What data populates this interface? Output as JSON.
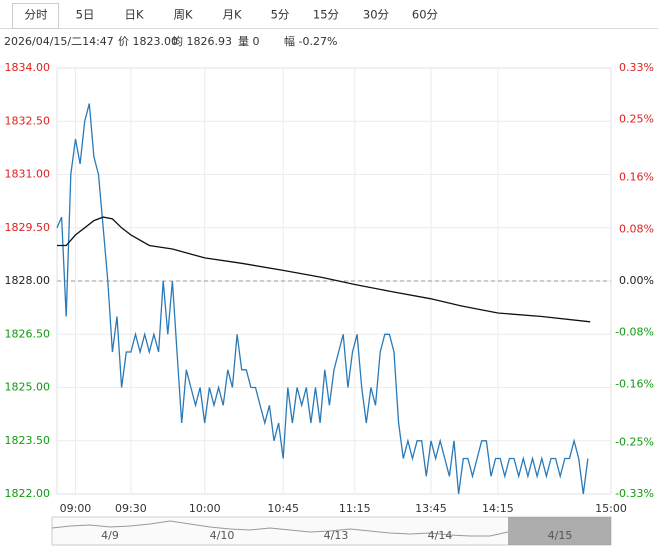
{
  "tabs": [
    "分时",
    "5日",
    "日K",
    "周K",
    "月K",
    "5分",
    "15分",
    "30分",
    "60分"
  ],
  "info": [
    "2026/04/15/二14:47",
    "价 1823.00",
    "均 1826.93",
    "量 0",
    "幅 -0.27%"
  ],
  "navigator": {
    "labels": [
      "4/9",
      "4/10",
      "4/13",
      "4/14",
      "4/15"
    ]
  },
  "chart_data": {
    "type": "line",
    "xlim": [
      0,
      240
    ],
    "xticks": [
      {
        "value": 8,
        "label": "09:00"
      },
      {
        "value": 32,
        "label": "09:30"
      },
      {
        "value": 64,
        "label": "10:00"
      },
      {
        "value": 98,
        "label": "10:45"
      },
      {
        "value": 129,
        "label": "11:15"
      },
      {
        "value": 162,
        "label": "13:45"
      },
      {
        "value": 191,
        "label": "14:15"
      },
      {
        "value": 240,
        "label": "15:00"
      }
    ],
    "ylim": [
      1822,
      1834
    ],
    "yticks": [
      {
        "value": 1834,
        "label": "1834.00"
      },
      {
        "value": 1832.5,
        "label": "1832.50"
      },
      {
        "value": 1831,
        "label": "1831.00"
      },
      {
        "value": 1829.5,
        "label": "1829.50"
      },
      {
        "value": 1828,
        "label": "1828.00"
      },
      {
        "value": 1826.5,
        "label": "1826.50"
      },
      {
        "value": 1825,
        "label": "1825.00"
      },
      {
        "value": 1823.5,
        "label": "1823.50"
      },
      {
        "value": 1822,
        "label": "1822.00"
      }
    ],
    "y2lim": [
      -0.33,
      0.33
    ],
    "y2ticks": [
      {
        "value": 0.33,
        "label": "0.33%"
      },
      {
        "value": 0.25,
        "label": "0.25%"
      },
      {
        "value": 0.16,
        "label": "0.16%"
      },
      {
        "value": 0.08,
        "label": "0.08%"
      },
      {
        "value": 0,
        "label": "0.00%"
      },
      {
        "value": -0.08,
        "label": "-0.08%"
      },
      {
        "value": -0.16,
        "label": "-0.16%"
      },
      {
        "value": -0.25,
        "label": "-0.25%"
      },
      {
        "value": -0.33,
        "label": "-0.33%"
      }
    ],
    "grid": true,
    "up_color": "#e02020",
    "down_color": "#109a10",
    "flat_color": "#222222",
    "series": [
      {
        "color": "#2a7ab8",
        "x": [
          0,
          2,
          4,
          6,
          8,
          10,
          12,
          14,
          16,
          18,
          20,
          22,
          24,
          26,
          28,
          30,
          32,
          34,
          36,
          38,
          40,
          42,
          44,
          46,
          48,
          50,
          52,
          54,
          56,
          58,
          60,
          62,
          64,
          66,
          68,
          70,
          72,
          74,
          76,
          78,
          80,
          82,
          84,
          86,
          88,
          90,
          92,
          94,
          96,
          98,
          100,
          102,
          104,
          106,
          108,
          110,
          112,
          114,
          116,
          118,
          120,
          122,
          124,
          126,
          128,
          130,
          132,
          134,
          136,
          138,
          140,
          142,
          144,
          146,
          148,
          150,
          152,
          154,
          156,
          158,
          160,
          162,
          164,
          166,
          168,
          170,
          172,
          174,
          176,
          178,
          180,
          182,
          184,
          186,
          188,
          190,
          192,
          194,
          196,
          198,
          200,
          202,
          204,
          206,
          208,
          210,
          212,
          214,
          216,
          218,
          220,
          222,
          224,
          226,
          228,
          230
        ],
        "values": [
          1829.5,
          1829.8,
          1827.0,
          1831.0,
          1832.0,
          1831.3,
          1832.5,
          1833.0,
          1831.5,
          1831.0,
          1829.5,
          1828.0,
          1826.0,
          1827.0,
          1825.0,
          1826.0,
          1826.0,
          1826.5,
          1826.0,
          1826.5,
          1826.0,
          1826.5,
          1826.0,
          1828.0,
          1826.5,
          1828.0,
          1826.0,
          1824.0,
          1825.5,
          1825.0,
          1824.5,
          1825.0,
          1824.0,
          1825.0,
          1824.5,
          1825.0,
          1824.5,
          1825.5,
          1825.0,
          1826.5,
          1825.5,
          1825.5,
          1825.0,
          1825.0,
          1824.5,
          1824.0,
          1824.5,
          1823.5,
          1824.0,
          1823.0,
          1825.0,
          1824.0,
          1825.0,
          1824.5,
          1825.0,
          1824.0,
          1825.0,
          1824.0,
          1825.5,
          1824.5,
          1825.5,
          1826.0,
          1826.5,
          1825.0,
          1826.0,
          1826.5,
          1825.0,
          1824.0,
          1825.0,
          1824.5,
          1826.0,
          1826.5,
          1826.5,
          1826.0,
          1824.0,
          1823.0,
          1823.5,
          1823.0,
          1823.5,
          1823.5,
          1822.5,
          1823.5,
          1823.0,
          1823.5,
          1823.0,
          1822.5,
          1823.5,
          1822.0,
          1823.0,
          1823.0,
          1822.5,
          1823.0,
          1823.5,
          1823.5,
          1822.5,
          1823.0,
          1823.0,
          1822.5,
          1823.0,
          1823.0,
          1822.5,
          1823.0,
          1822.5,
          1823.0,
          1822.5,
          1823.0,
          1822.5,
          1823.0,
          1823.0,
          1822.5,
          1823.0,
          1823.0,
          1823.5,
          1823.0,
          1822.0,
          1823.0
        ]
      },
      {
        "color": "#111111",
        "x": [
          0,
          4,
          8,
          12,
          16,
          20,
          24,
          28,
          32,
          40,
          50,
          64,
          80,
          98,
          115,
          129,
          145,
          162,
          175,
          191,
          210,
          231
        ],
        "values": [
          1829.0,
          1829.0,
          1829.3,
          1829.5,
          1829.7,
          1829.8,
          1829.75,
          1829.5,
          1829.3,
          1829.0,
          1828.9,
          1828.65,
          1828.5,
          1828.3,
          1828.1,
          1827.9,
          1827.7,
          1827.5,
          1827.3,
          1827.1,
          1827.0,
          1826.85
        ]
      }
    ]
  }
}
